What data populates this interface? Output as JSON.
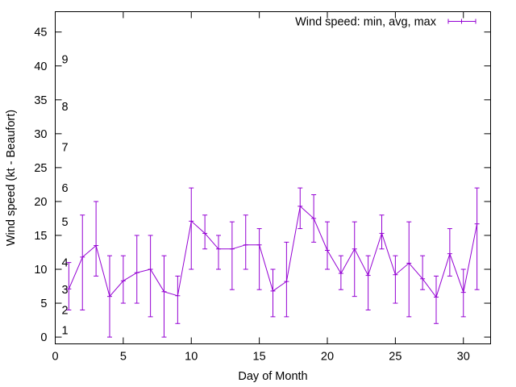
{
  "chart_data": {
    "type": "line",
    "xlabel": "Day of Month",
    "ylabel": "Wind speed (kt - Beaufort)",
    "xlim": [
      0,
      32
    ],
    "ylim": [
      -1,
      48
    ],
    "xticks": [
      0,
      5,
      10,
      15,
      20,
      25,
      30
    ],
    "yticks": [
      0,
      5,
      10,
      15,
      20,
      25,
      30,
      35,
      40,
      45
    ],
    "grid": false,
    "legend_position": "top-right",
    "beaufort_labels": [
      {
        "label": "1",
        "y": 1
      },
      {
        "label": "2",
        "y": 4
      },
      {
        "label": "3",
        "y": 7
      },
      {
        "label": "4",
        "y": 11
      },
      {
        "label": "5",
        "y": 17
      },
      {
        "label": "6",
        "y": 22
      },
      {
        "label": "7",
        "y": 28
      },
      {
        "label": "8",
        "y": 34
      },
      {
        "label": "9",
        "y": 41
      }
    ],
    "series": [
      {
        "name": "Wind speed: min, avg, max",
        "color": "#9400d3",
        "x": [
          1,
          2,
          3,
          4,
          5,
          6,
          7,
          8,
          9,
          10,
          11,
          12,
          13,
          14,
          15,
          16,
          17,
          18,
          19,
          20,
          21,
          22,
          23,
          24,
          25,
          26,
          27,
          28,
          29,
          30,
          31
        ],
        "avg": [
          7.1,
          11.8,
          13.5,
          6.0,
          8.3,
          9.5,
          10.0,
          6.7,
          6.1,
          17.1,
          15.3,
          13.0,
          13.0,
          13.6,
          13.6,
          6.8,
          8.2,
          19.3,
          17.5,
          12.8,
          9.4,
          13.0,
          9.1,
          15.3,
          9.2,
          10.9,
          8.6,
          5.9,
          12.3,
          6.6,
          16.7
        ],
        "min": [
          4,
          4,
          9,
          0,
          5,
          5,
          3,
          0,
          2,
          10,
          13,
          10,
          7,
          10,
          7,
          3,
          3,
          16,
          14,
          10,
          7,
          6,
          4,
          13,
          5,
          3,
          7,
          2,
          9,
          3,
          7
        ],
        "max": [
          11,
          18,
          20,
          12,
          12,
          15,
          15,
          12,
          9,
          22,
          18,
          15,
          17,
          18,
          16,
          10,
          14,
          22,
          21,
          17,
          12,
          17,
          12,
          18,
          12,
          17,
          12,
          9,
          16,
          10,
          22
        ]
      }
    ]
  }
}
